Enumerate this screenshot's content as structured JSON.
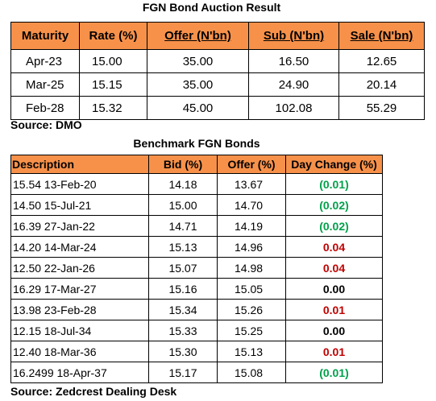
{
  "auction": {
    "title": "FGN Bond Auction Result",
    "headers": {
      "maturity": "Maturity",
      "rate": "Rate (%)",
      "offer": "Offer (N'bn)",
      "sub": "Sub (N'bn)",
      "sale": "Sale (N'bn)"
    },
    "rows": [
      {
        "maturity": "Apr-23",
        "rate": "15.00",
        "offer": "35.00",
        "sub": "16.50",
        "sale": "12.65"
      },
      {
        "maturity": "Mar-25",
        "rate": "15.15",
        "offer": "35.00",
        "sub": "24.90",
        "sale": "20.14"
      },
      {
        "maturity": "Feb-28",
        "rate": "15.32",
        "offer": "45.00",
        "sub": "102.08",
        "sale": "55.29"
      }
    ],
    "source": "Source: DMO"
  },
  "benchmark": {
    "title": "Benchmark FGN Bonds",
    "headers": {
      "description": "Description",
      "bid": "Bid (%)",
      "offer": "Offer (%)",
      "change": "Day Change (%)"
    },
    "rows": [
      {
        "description": "15.54 13-Feb-20",
        "bid": "14.18",
        "offer": "13.67",
        "change": "(0.01)",
        "direction": "positive"
      },
      {
        "description": "14.50 15-Jul-21",
        "bid": "15.00",
        "offer": "14.70",
        "change": "(0.02)",
        "direction": "positive"
      },
      {
        "description": "16.39 27-Jan-22",
        "bid": "14.71",
        "offer": "14.19",
        "change": "(0.02)",
        "direction": "positive"
      },
      {
        "description": "14.20 14-Mar-24",
        "bid": "15.13",
        "offer": "14.96",
        "change": "0.04",
        "direction": "negative"
      },
      {
        "description": "12.50 22-Jan-26",
        "bid": "15.07",
        "offer": "14.98",
        "change": "0.04",
        "direction": "negative"
      },
      {
        "description": "16.29 17-Mar-27",
        "bid": "15.16",
        "offer": "15.05",
        "change": "0.00",
        "direction": "zero"
      },
      {
        "description": "13.98 23-Feb-28",
        "bid": "15.34",
        "offer": "15.26",
        "change": "0.01",
        "direction": "negative"
      },
      {
        "description": "12.15 18-Jul-34",
        "bid": "15.33",
        "offer": "15.25",
        "change": "0.00",
        "direction": "zero"
      },
      {
        "description": "12.40 18-Mar-36",
        "bid": "15.30",
        "offer": "15.13",
        "change": "0.01",
        "direction": "negative"
      },
      {
        "description": "16.2499 18-Apr-37",
        "bid": "15.17",
        "offer": "15.08",
        "change": "(0.01)",
        "direction": "positive"
      }
    ],
    "source": "Source: Zedcrest Dealing Desk"
  },
  "colors": {
    "header_fill": "#f7914a",
    "change_positive": "#00a04a",
    "change_negative": "#c00000",
    "change_zero": "#000000"
  }
}
